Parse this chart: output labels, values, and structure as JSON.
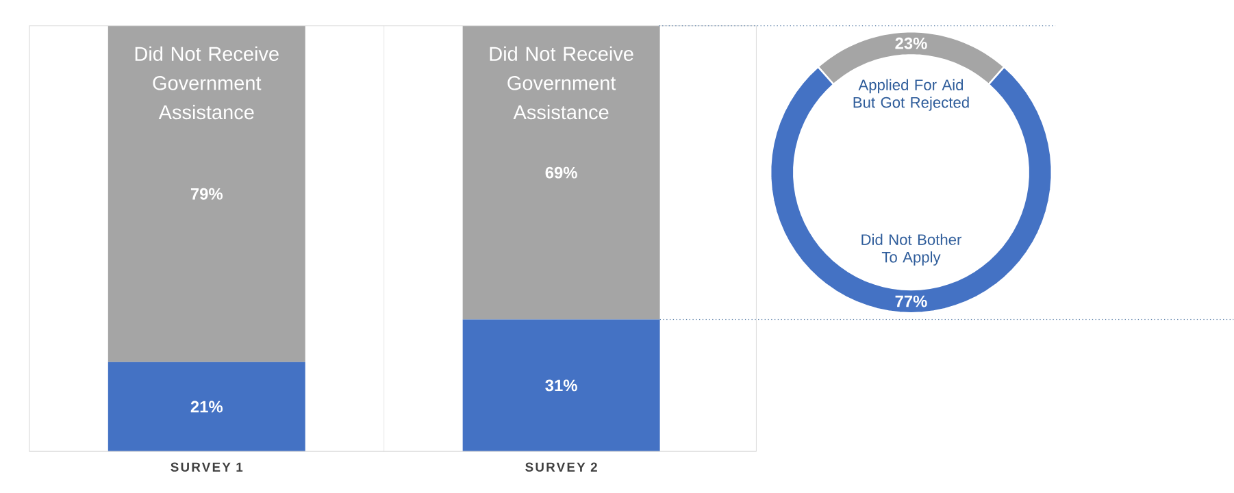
{
  "chart_data": [
    {
      "type": "bar",
      "stacked": true,
      "categories": [
        "SURVEY 1",
        "SURVEY 2"
      ],
      "tick_labels": "x",
      "ref_lines": [
        {
          "axis": "y",
          "value": 31,
          "color": "#5b7fa8",
          "line_style": "dotted"
        }
      ],
      "grid": "x",
      "series": [
        {
          "color": "#4472c4",
          "values": [
            21,
            31
          ],
          "value_labels": [
            "21%",
            "31%"
          ]
        },
        {
          "name": "Did Not Receive Government Assistance",
          "color": "#a5a5a5",
          "values": [
            79,
            69
          ],
          "value_labels": [
            "79%",
            "69%"
          ]
        }
      ]
    },
    {
      "type": "donut",
      "categories": [
        "Applied For Aid But Got Rejected",
        "Did Not Bother To Apply"
      ],
      "values": [
        23,
        77
      ],
      "colors": [
        "#a5a5a5",
        "#4472c4"
      ],
      "value_labels": [
        "23%",
        "77%"
      ]
    }
  ]
}
